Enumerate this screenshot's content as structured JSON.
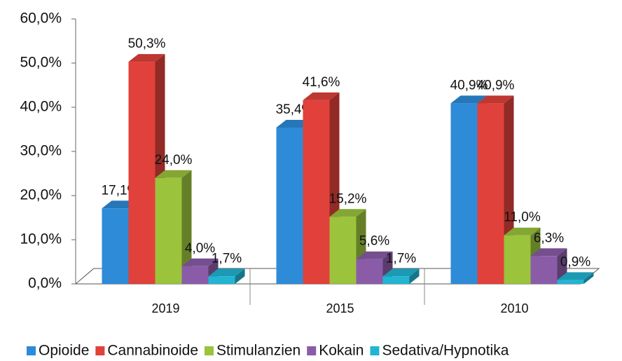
{
  "chart_data": {
    "type": "bar3d",
    "categories": [
      "2019",
      "2015",
      "2010"
    ],
    "series": [
      {
        "name": "Opioide",
        "color": "#2e8bd8",
        "values": [
          17.1,
          35.4,
          40.9
        ],
        "value_labels": [
          "17,1%",
          "35,4%",
          "40,9%"
        ]
      },
      {
        "name": "Cannabinoide",
        "color": "#e0413a",
        "values": [
          50.3,
          41.6,
          40.9
        ],
        "value_labels": [
          "50,3%",
          "41,6%",
          "40,9%"
        ]
      },
      {
        "name": "Stimulanzien",
        "color": "#9bc33c",
        "values": [
          24.0,
          15.2,
          11.0
        ],
        "value_labels": [
          "24,0%",
          "15,2%",
          "11,0%"
        ]
      },
      {
        "name": "Kokain",
        "color": "#8a5ca8",
        "values": [
          4.0,
          5.6,
          6.3
        ],
        "value_labels": [
          "4,0%",
          "5,6%",
          "6,3%"
        ]
      },
      {
        "name": "Sedativa/Hypnotika",
        "color": "#22b5d3",
        "values": [
          1.7,
          1.7,
          0.9
        ],
        "value_labels": [
          "1,7%",
          "1,7%",
          "0,9%"
        ]
      }
    ],
    "ylim": [
      0,
      60
    ],
    "yticks": [
      {
        "value": 0,
        "label": "0,0%"
      },
      {
        "value": 10,
        "label": "10,0%"
      },
      {
        "value": 20,
        "label": "20,0%"
      },
      {
        "value": 30,
        "label": "30,0%"
      },
      {
        "value": 40,
        "label": "40,0%"
      },
      {
        "value": 50,
        "label": "50,0%"
      },
      {
        "value": 60,
        "label": "60,0%"
      }
    ],
    "legend": "bottom"
  }
}
